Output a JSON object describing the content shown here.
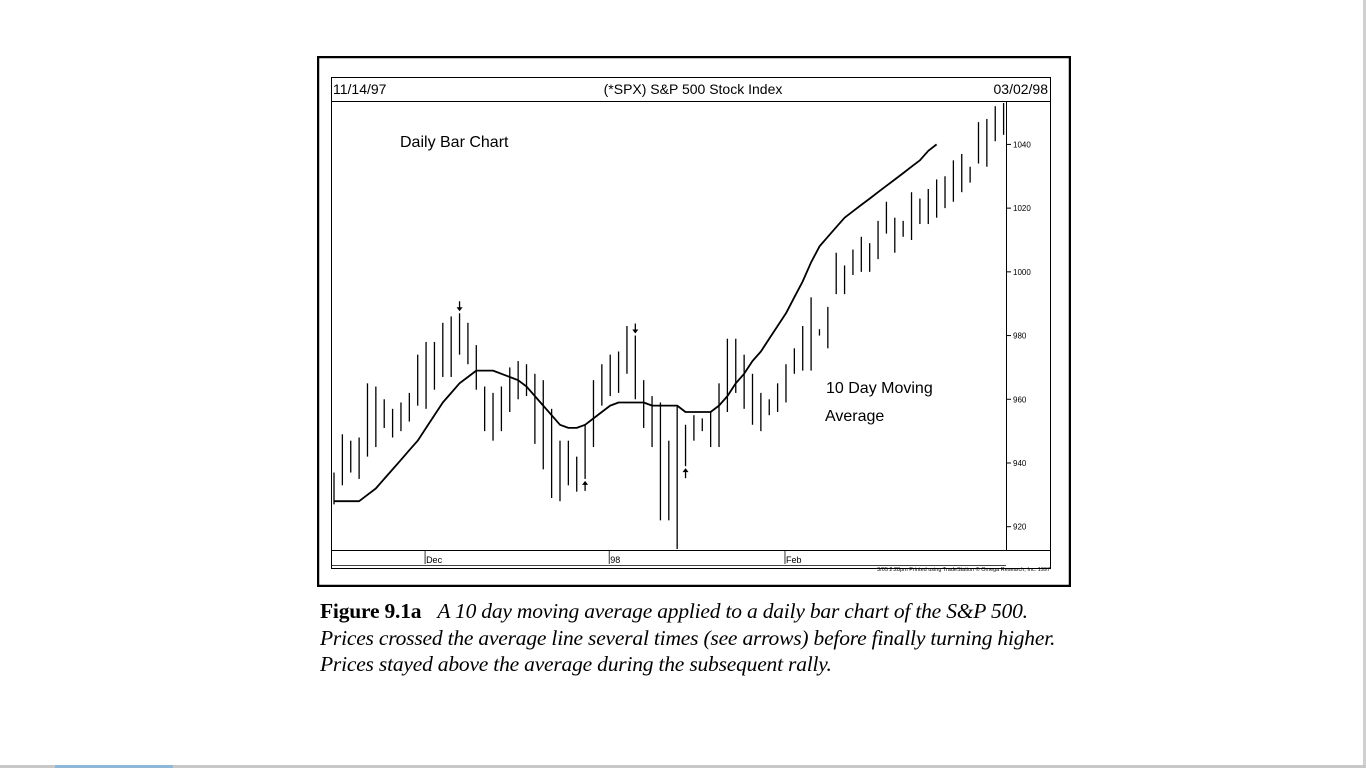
{
  "chart_data": {
    "type": "ohlc",
    "title": "(*SPX) S&P 500 Stock Index",
    "date_start": "11/14/97",
    "date_end": "03/02/98",
    "annotation_chart": "Daily Bar Chart",
    "annotation_ma_line1": "10 Day Moving",
    "annotation_ma_line2": "Average",
    "footer": "3/05 2:28pm Printed using TradeStation © Omega Research, Inc. 1997",
    "x_month_labels": [
      {
        "label": "Dec",
        "index": 11
      },
      {
        "label": "98",
        "index": 33
      },
      {
        "label": "Feb",
        "index": 54
      }
    ],
    "ylim": [
      913,
      1053
    ],
    "yticks": [
      920,
      940,
      960,
      980,
      1000,
      1020,
      1040
    ],
    "bars": [
      [
        937,
        927
      ],
      [
        949,
        933
      ],
      [
        947,
        937
      ],
      [
        948,
        935
      ],
      [
        965,
        942
      ],
      [
        964,
        945
      ],
      [
        960,
        951
      ],
      [
        957,
        948
      ],
      [
        959,
        950
      ],
      [
        962,
        953
      ],
      [
        974,
        958
      ],
      [
        978,
        957
      ],
      [
        978,
        963
      ],
      [
        984,
        967
      ],
      [
        986,
        967
      ],
      [
        987,
        974
      ],
      [
        984,
        971
      ],
      [
        977,
        963
      ],
      [
        964,
        950
      ],
      [
        962,
        947
      ],
      [
        964,
        950
      ],
      [
        970,
        956
      ],
      [
        972,
        960
      ],
      [
        971,
        961
      ],
      [
        968,
        946
      ],
      [
        966,
        938
      ],
      [
        957,
        929
      ],
      [
        947,
        928
      ],
      [
        947,
        933
      ],
      [
        942,
        931
      ],
      [
        952,
        935
      ],
      [
        966,
        945
      ],
      [
        971,
        958
      ],
      [
        974,
        961
      ],
      [
        975,
        962
      ],
      [
        983,
        968
      ],
      [
        980,
        960
      ],
      [
        966,
        951
      ],
      [
        961,
        945
      ],
      [
        959,
        922
      ],
      [
        947,
        922
      ],
      [
        958,
        911
      ],
      [
        952,
        939
      ],
      [
        955,
        947
      ],
      [
        954,
        950
      ],
      [
        956,
        945
      ],
      [
        965,
        945
      ],
      [
        979,
        956
      ],
      [
        979,
        962
      ],
      [
        974,
        957
      ],
      [
        968,
        952
      ],
      [
        962,
        950
      ],
      [
        960,
        955
      ],
      [
        965,
        956
      ],
      [
        971,
        959
      ],
      [
        976,
        968
      ],
      [
        983,
        969
      ],
      [
        992,
        969
      ],
      [
        982,
        980
      ],
      [
        989,
        976
      ],
      [
        1006,
        993
      ],
      [
        1002,
        993
      ],
      [
        1007,
        999
      ],
      [
        1011,
        1000
      ],
      [
        1009,
        1000
      ],
      [
        1016,
        1004
      ],
      [
        1022,
        1012
      ],
      [
        1017,
        1006
      ],
      [
        1016,
        1011
      ],
      [
        1025,
        1010
      ],
      [
        1023,
        1015
      ],
      [
        1026,
        1015
      ],
      [
        1029,
        1017
      ],
      [
        1030,
        1020
      ],
      [
        1035,
        1022
      ],
      [
        1037,
        1025
      ],
      [
        1033,
        1028
      ],
      [
        1047,
        1034
      ],
      [
        1048,
        1033
      ],
      [
        1052,
        1041
      ],
      [
        1055,
        1043
      ]
    ],
    "moving_average_10": [
      928,
      928,
      928,
      928,
      930,
      932,
      935,
      938,
      941,
      944,
      947,
      951,
      955,
      959,
      962,
      965,
      967,
      969,
      969,
      969,
      968,
      967,
      966,
      964,
      961,
      958,
      955,
      952,
      951,
      951,
      952,
      954,
      956,
      958,
      959,
      959,
      959,
      959,
      958,
      958,
      958,
      958,
      956,
      956,
      956,
      956,
      958,
      961,
      965,
      968,
      972,
      975,
      979,
      983,
      987,
      992,
      997,
      1003,
      1008,
      1011,
      1014,
      1017,
      1019,
      1021,
      1023,
      1025,
      1027,
      1029,
      1031,
      1033,
      1035,
      1038,
      1040
    ],
    "arrows": [
      {
        "index": 15,
        "direction": "down"
      },
      {
        "index": 30,
        "direction": "up"
      },
      {
        "index": 36,
        "direction": "down"
      },
      {
        "index": 42,
        "direction": "up"
      }
    ]
  },
  "caption": {
    "label": "Figure 9.1a",
    "text": "A 10 day moving average applied to a daily bar chart of the S&P 500. Prices crossed the average line several times (see arrows) before finally turning higher. Prices stayed above the average during the subsequent rally."
  },
  "colors": {
    "ink": "#000000",
    "paper": "#ffffff"
  }
}
